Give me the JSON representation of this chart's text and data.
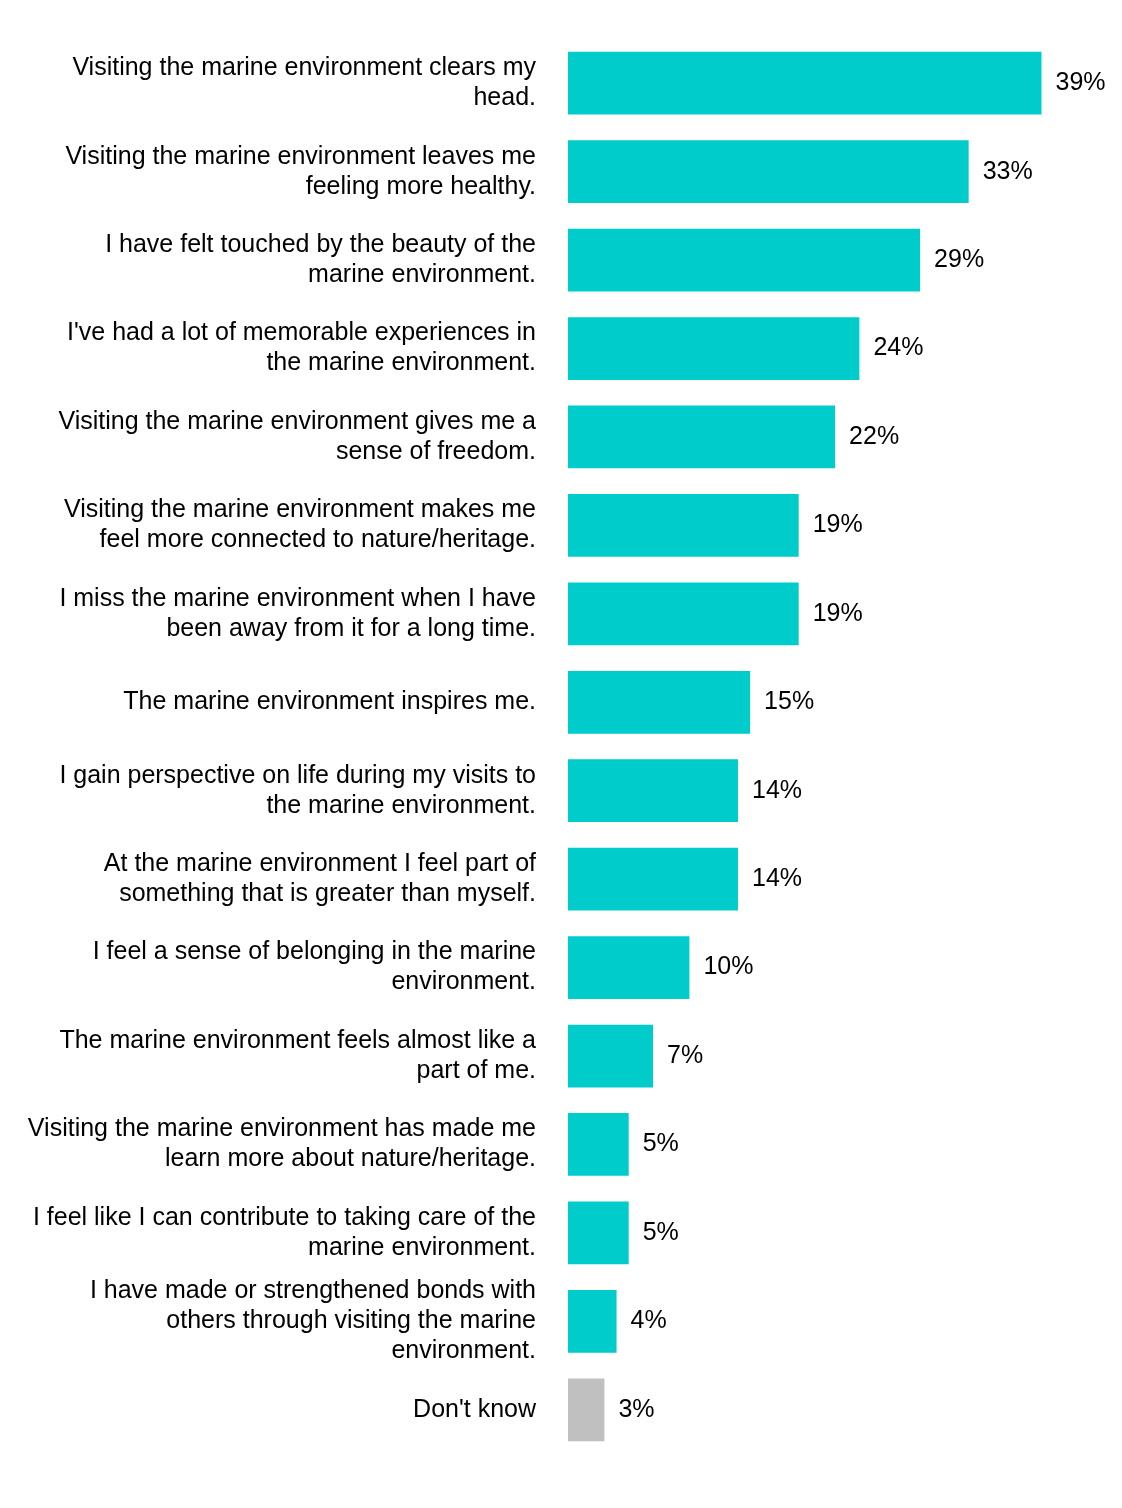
{
  "chart_data": {
    "type": "bar",
    "orientation": "horizontal",
    "categories": [
      "Visiting the marine environment clears my head.",
      "Visiting the marine environment leaves me feeling more healthy.",
      "I have felt touched by the beauty of the marine environment.",
      "I've had a lot of memorable experiences in the marine environment.",
      "Visiting the marine environment gives me a sense of freedom.",
      "Visiting the marine environment makes me feel more connected to nature/heritage.",
      "I miss the marine environment when I have been away from it for a long time.",
      "The marine environment inspires me.",
      "I gain perspective on life during my visits to the marine environment.",
      "At the marine environment I feel part of something that is greater than myself.",
      "I feel a sense of belonging in the marine environment.",
      "The marine environment feels almost like a part of me.",
      "Visiting the marine environment has made me learn more about nature/heritage.",
      "I feel like I can contribute to taking care of the marine environment.",
      "I have made or strengthened bonds with others through visiting the marine environment.",
      "Don't know"
    ],
    "values": [
      39,
      33,
      29,
      24,
      22,
      19,
      19,
      15,
      14,
      14,
      10,
      7,
      5,
      5,
      4,
      3
    ],
    "value_labels": [
      "39%",
      "33%",
      "29%",
      "24%",
      "22%",
      "19%",
      "19%",
      "15%",
      "14%",
      "14%",
      "10%",
      "7%",
      "5%",
      "5%",
      "4%",
      "3%"
    ],
    "colors": [
      "#00cccc",
      "#00cccc",
      "#00cccc",
      "#00cccc",
      "#00cccc",
      "#00cccc",
      "#00cccc",
      "#00cccc",
      "#00cccc",
      "#00cccc",
      "#00cccc",
      "#00cccc",
      "#00cccc",
      "#00cccc",
      "#00cccc",
      "#c0c0c0"
    ],
    "legend": false
  }
}
